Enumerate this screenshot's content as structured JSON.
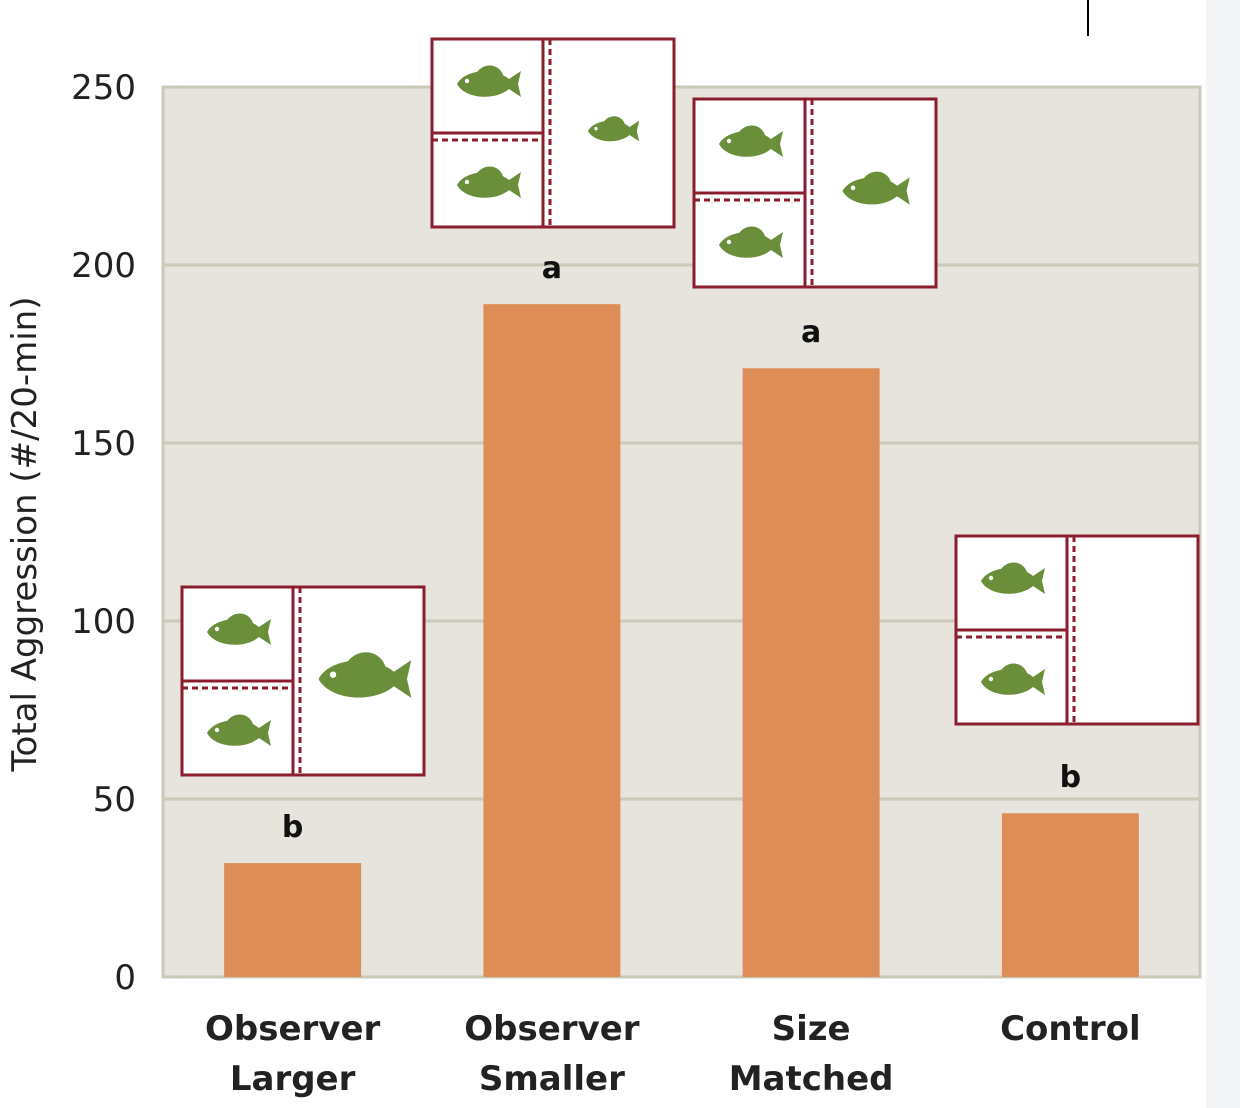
{
  "chart_data": {
    "type": "bar",
    "categories": [
      [
        "Observer",
        "Larger"
      ],
      [
        "Observer",
        "Smaller"
      ],
      [
        "Size",
        "Matched"
      ],
      [
        "Control"
      ]
    ],
    "values": [
      32,
      189,
      171,
      46
    ],
    "significance_labels": [
      "b",
      "a",
      "a",
      "b"
    ],
    "ylabel": "Total Aggression (#/20-min)",
    "ylim": [
      0,
      250
    ],
    "yticks": [
      0,
      50,
      100,
      150,
      200,
      250
    ],
    "grid": true,
    "colors": {
      "bar": "#de8d57",
      "plot_bg": "#e6e4dc",
      "grid": "#cbc9b7",
      "frame": "#8b1e2e",
      "fish": "#6b8e3a"
    },
    "insets": [
      {
        "condition": "observer-larger",
        "focal_fish": "large"
      },
      {
        "condition": "observer-smaller",
        "focal_fish": "small"
      },
      {
        "condition": "size-matched",
        "focal_fish": "medium"
      },
      {
        "condition": "control",
        "focal_fish": "none"
      }
    ]
  }
}
